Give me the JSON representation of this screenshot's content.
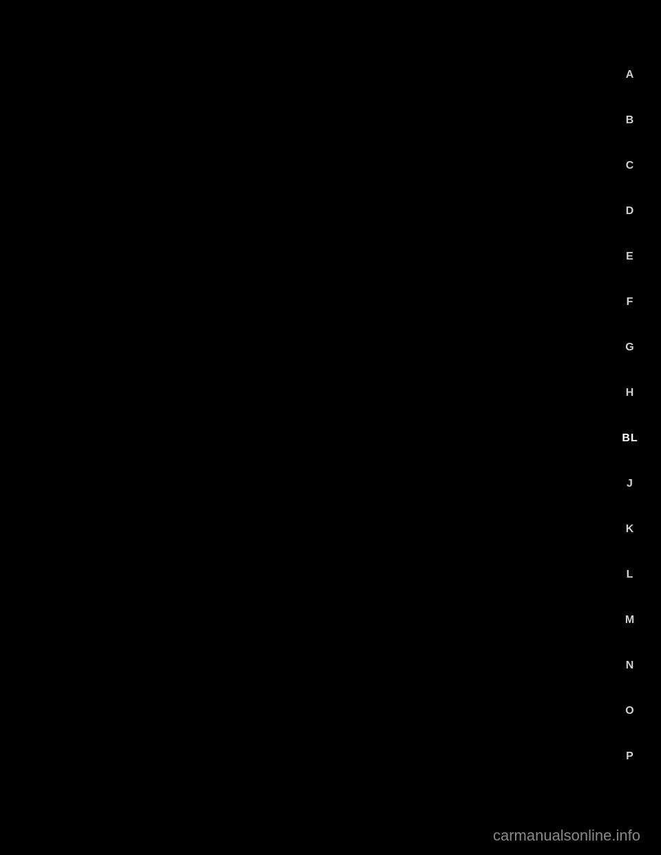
{
  "tabs": [
    {
      "label": "A",
      "active": false
    },
    {
      "label": "B",
      "active": false
    },
    {
      "label": "C",
      "active": false
    },
    {
      "label": "D",
      "active": false
    },
    {
      "label": "E",
      "active": false
    },
    {
      "label": "F",
      "active": false
    },
    {
      "label": "G",
      "active": false
    },
    {
      "label": "H",
      "active": false
    },
    {
      "label": "BL",
      "active": true
    },
    {
      "label": "J",
      "active": false
    },
    {
      "label": "K",
      "active": false
    },
    {
      "label": "L",
      "active": false
    },
    {
      "label": "M",
      "active": false
    },
    {
      "label": "N",
      "active": false
    },
    {
      "label": "O",
      "active": false
    },
    {
      "label": "P",
      "active": false
    }
  ],
  "watermark": "carmanualsonline.info",
  "colors": {
    "background": "#000000",
    "tab_text": "#d0d0d0",
    "tab_active": "#ffffff",
    "watermark": "#888888"
  }
}
